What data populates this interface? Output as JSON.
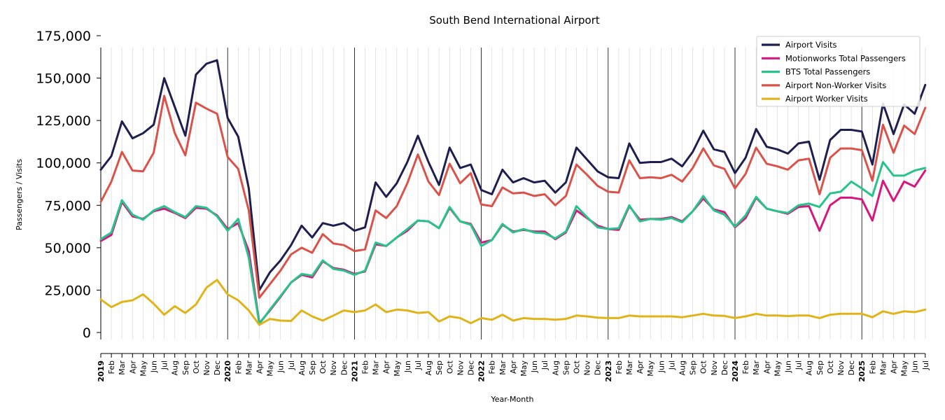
{
  "chart_data": {
    "type": "line",
    "title": "South Bend International Airport",
    "xlabel": "Year-Month",
    "ylabel": "Passengers / Visits",
    "ylim": [
      0,
      175000
    ],
    "y_ticks": [
      0,
      25000,
      50000,
      75000,
      100000,
      125000,
      150000,
      175000
    ],
    "y_tick_labels": [
      "0",
      "25,000",
      "50,000",
      "75,000",
      "100,000",
      "125,000",
      "150,000",
      "175,000"
    ],
    "grid": "vertical minor gridlines at each month; black vertical lines at each January",
    "legend_position": "top-right",
    "year_labels": [
      "2019",
      "2020",
      "2021",
      "2022",
      "2023",
      "2024",
      "2025"
    ],
    "month_labels": [
      "Feb",
      "Mar",
      "Apr",
      "May",
      "Jun",
      "Jul",
      "Aug",
      "Sep",
      "Oct",
      "Nov",
      "Dec"
    ],
    "x_start": "2019-01",
    "x_end": "2025-07",
    "series": [
      {
        "name": "Airport Visits",
        "color": "#1f1f4f",
        "values": [
          96000,
          104000,
          124500,
          114500,
          117500,
          122500,
          150000,
          133000,
          116000,
          152000,
          158500,
          160500,
          126500,
          115500,
          85000,
          25000,
          35500,
          42500,
          51500,
          63000,
          56000,
          64500,
          63000,
          64500,
          60000,
          62000,
          88500,
          80000,
          88000,
          100500,
          116000,
          100500,
          87000,
          109000,
          97000,
          99000,
          84000,
          81500,
          96000,
          88500,
          91000,
          88500,
          89500,
          82500,
          88500,
          109000,
          102000,
          95000,
          91500,
          91000,
          111500,
          100000,
          100500,
          100500,
          102500,
          98000,
          106500,
          119000,
          108000,
          106500,
          94000,
          103000,
          120000,
          109500,
          108000,
          105500,
          111500,
          112500,
          90000,
          113500,
          119500,
          119500,
          118500,
          99000,
          135000,
          117000,
          134500,
          129000,
          146000
        ]
      },
      {
        "name": "Motionworks Total Passengers",
        "color": "#d4187e",
        "values": [
          54000,
          57500,
          77000,
          68500,
          67000,
          71500,
          73000,
          70500,
          67500,
          73500,
          73000,
          69000,
          61000,
          64500,
          48000,
          5500,
          13000,
          21000,
          29500,
          34000,
          32500,
          42000,
          38000,
          37000,
          34500,
          36000,
          52000,
          51000,
          56000,
          60000,
          66000,
          65500,
          61500,
          73500,
          65500,
          64000,
          53000,
          54500,
          63500,
          59500,
          60500,
          59500,
          59500,
          55000,
          59000,
          72000,
          67500,
          63000,
          61000,
          60500,
          74500,
          66500,
          67000,
          67000,
          68000,
          65500,
          71500,
          79000,
          72500,
          71000,
          62000,
          67500,
          79500,
          73000,
          71500,
          70000,
          74000,
          74500,
          60000,
          75000,
          79500,
          79500,
          78500,
          66000,
          89500,
          77500,
          89000,
          86000,
          95500
        ]
      },
      {
        "name": "BTS Total Passengers",
        "color": "#26c48a",
        "values": [
          55000,
          59000,
          78000,
          69500,
          66500,
          72000,
          74500,
          71000,
          68000,
          74500,
          73500,
          68500,
          60000,
          67000,
          44000,
          5000,
          13500,
          21500,
          29500,
          34500,
          33500,
          42500,
          37500,
          36500,
          34000,
          36500,
          53000,
          51000,
          56000,
          61000,
          66000,
          65500,
          61500,
          74000,
          65500,
          63500,
          51000,
          54500,
          64000,
          59000,
          61000,
          59000,
          58500,
          55500,
          59500,
          74500,
          68000,
          62000,
          61000,
          61500,
          75000,
          65500,
          67000,
          66500,
          67500,
          65000,
          71500,
          80500,
          72000,
          69500,
          62500,
          69000,
          80000,
          73000,
          71500,
          70500,
          75000,
          76000,
          74000,
          82000,
          83000,
          89000,
          85000,
          80500,
          100500,
          92500,
          92500,
          95500,
          97000
        ]
      },
      {
        "name": "Airport Non-Worker Visits",
        "color": "#d9534a",
        "values": [
          77000,
          89000,
          106500,
          95500,
          95000,
          106000,
          139500,
          117500,
          104500,
          135500,
          132000,
          129000,
          103500,
          96500,
          72000,
          20500,
          28500,
          36500,
          46000,
          50000,
          47000,
          58000,
          52500,
          51500,
          48000,
          49000,
          72000,
          67500,
          74500,
          88000,
          105000,
          89000,
          81000,
          99500,
          88000,
          94000,
          75500,
          74500,
          85500,
          82000,
          82500,
          80500,
          81500,
          75000,
          80500,
          99000,
          93000,
          86500,
          83000,
          82500,
          101500,
          91000,
          91500,
          91000,
          93000,
          89000,
          97000,
          108500,
          98500,
          96500,
          85000,
          93500,
          109000,
          99500,
          98000,
          96000,
          101500,
          102500,
          81500,
          103000,
          108500,
          108500,
          107500,
          89500,
          122500,
          106000,
          122000,
          117000,
          132500
        ]
      },
      {
        "name": "Airport Worker Visits",
        "color": "#e0b419",
        "values": [
          19500,
          15000,
          18000,
          19000,
          22500,
          17000,
          10500,
          15500,
          11500,
          16500,
          26500,
          31000,
          22500,
          19000,
          13000,
          4500,
          8000,
          7000,
          6800,
          13000,
          9500,
          7000,
          10000,
          13000,
          12000,
          13000,
          16500,
          12000,
          13500,
          13000,
          11500,
          12000,
          6500,
          9500,
          8500,
          5500,
          8500,
          7500,
          10500,
          7000,
          8500,
          8000,
          8000,
          7500,
          8000,
          10000,
          9500,
          8800,
          8500,
          8500,
          10000,
          9500,
          9500,
          9500,
          9500,
          9000,
          10000,
          11000,
          10000,
          9800,
          8500,
          9500,
          11000,
          10000,
          10000,
          9700,
          10000,
          10000,
          8500,
          10500,
          11000,
          11000,
          11000,
          9000,
          12500,
          11000,
          12500,
          12000,
          13500
        ]
      }
    ]
  }
}
